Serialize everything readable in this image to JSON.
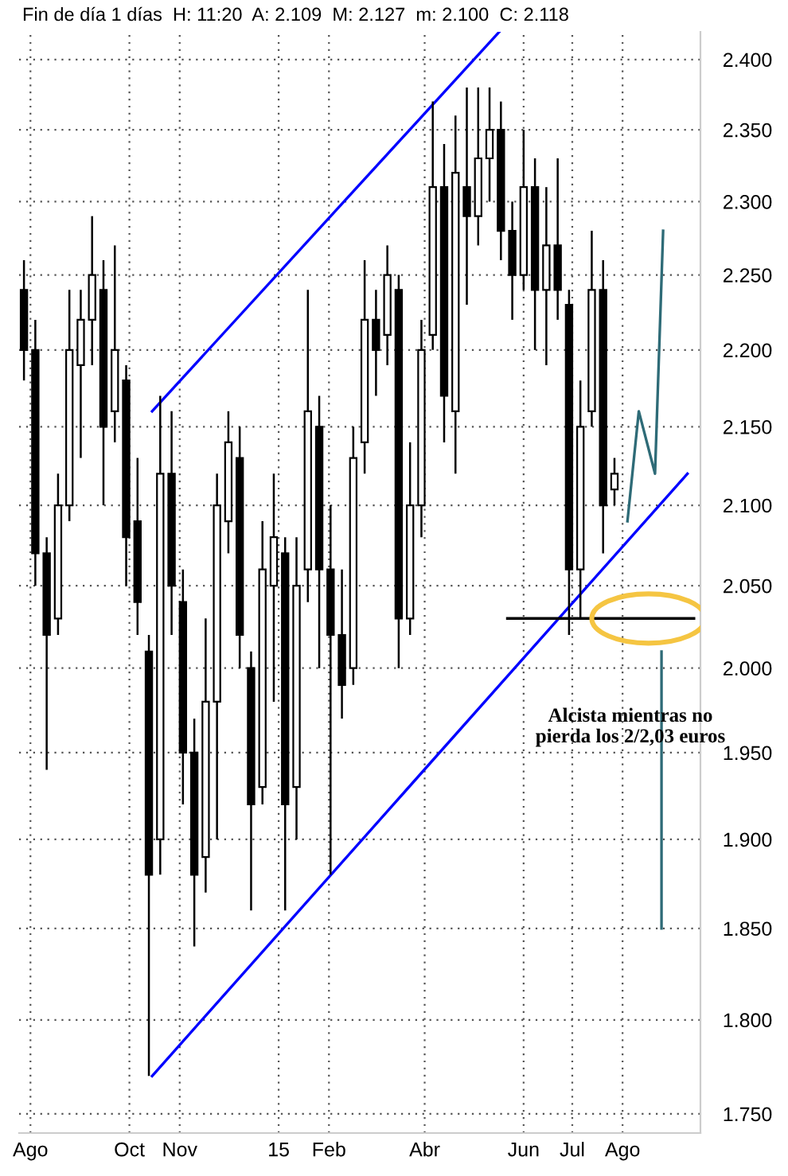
{
  "chart_data": {
    "type": "candlestick",
    "title": "Fin de día 1 días  H: 11:20  A: 2.109  M: 2.127  m: 2.100  C: 2.118",
    "x": [
      "2014-07-28",
      "2014-08-04",
      "2014-08-11",
      "2014-08-18",
      "2014-08-25",
      "2014-09-01",
      "2014-09-08",
      "2014-09-15",
      "2014-09-22",
      "2014-09-29",
      "2014-10-06",
      "2014-10-13",
      "2014-10-20",
      "2014-10-27",
      "2014-11-03",
      "2014-11-10",
      "2014-11-17",
      "2014-11-24",
      "2014-12-01",
      "2014-12-08",
      "2014-12-15",
      "2014-12-22",
      "2014-12-29",
      "2015-01-05",
      "2015-01-12",
      "2015-01-19",
      "2015-01-26",
      "2015-02-02",
      "2015-02-09",
      "2015-02-16",
      "2015-02-23",
      "2015-03-02",
      "2015-03-09",
      "2015-03-16",
      "2015-03-23",
      "2015-03-30",
      "2015-04-06",
      "2015-04-13",
      "2015-04-20",
      "2015-04-27",
      "2015-05-04",
      "2015-05-11",
      "2015-05-18",
      "2015-05-25",
      "2015-06-01",
      "2015-06-08",
      "2015-06-15",
      "2015-06-22",
      "2015-06-29",
      "2015-07-06",
      "2015-07-13",
      "2015-07-20",
      "2015-07-27"
    ],
    "ohlc": [
      [
        2.24,
        2.26,
        2.18,
        2.2
      ],
      [
        2.2,
        2.22,
        2.05,
        2.07
      ],
      [
        2.07,
        2.08,
        1.94,
        2.02
      ],
      [
        2.03,
        2.12,
        2.02,
        2.1
      ],
      [
        2.1,
        2.24,
        2.09,
        2.2
      ],
      [
        2.19,
        2.24,
        2.13,
        2.22
      ],
      [
        2.22,
        2.29,
        2.19,
        2.25
      ],
      [
        2.24,
        2.26,
        2.1,
        2.15
      ],
      [
        2.16,
        2.27,
        2.14,
        2.2
      ],
      [
        2.18,
        2.19,
        2.05,
        2.08
      ],
      [
        2.09,
        2.13,
        2.02,
        2.04
      ],
      [
        2.01,
        2.02,
        1.77,
        1.88
      ],
      [
        1.9,
        2.17,
        1.88,
        2.12
      ],
      [
        2.12,
        2.16,
        2.02,
        2.05
      ],
      [
        2.04,
        2.06,
        1.92,
        1.95
      ],
      [
        1.95,
        1.97,
        1.84,
        1.88
      ],
      [
        1.89,
        2.03,
        1.87,
        1.98
      ],
      [
        1.98,
        2.12,
        1.9,
        2.1
      ],
      [
        2.09,
        2.16,
        2.07,
        2.14
      ],
      [
        2.13,
        2.15,
        2.0,
        2.02
      ],
      [
        2.0,
        2.01,
        1.86,
        1.92
      ],
      [
        1.93,
        2.09,
        1.92,
        2.06
      ],
      [
        2.05,
        2.12,
        1.98,
        2.08
      ],
      [
        2.07,
        2.08,
        1.86,
        1.92
      ],
      [
        1.93,
        2.08,
        1.9,
        2.05
      ],
      [
        2.06,
        2.24,
        2.04,
        2.16
      ],
      [
        2.15,
        2.17,
        2.0,
        2.06
      ],
      [
        2.06,
        2.1,
        1.88,
        2.02
      ],
      [
        2.02,
        2.06,
        1.97,
        1.99
      ],
      [
        2.0,
        2.15,
        1.99,
        2.13
      ],
      [
        2.14,
        2.26,
        2.12,
        2.22
      ],
      [
        2.22,
        2.24,
        2.17,
        2.2
      ],
      [
        2.21,
        2.27,
        2.19,
        2.25
      ],
      [
        2.24,
        2.25,
        2.0,
        2.03
      ],
      [
        2.03,
        2.14,
        2.02,
        2.1
      ],
      [
        2.1,
        2.22,
        2.08,
        2.2
      ],
      [
        2.21,
        2.37,
        2.2,
        2.31
      ],
      [
        2.31,
        2.34,
        2.14,
        2.17
      ],
      [
        2.16,
        2.36,
        2.12,
        2.32
      ],
      [
        2.31,
        2.38,
        2.23,
        2.29
      ],
      [
        2.29,
        2.38,
        2.27,
        2.33
      ],
      [
        2.33,
        2.38,
        2.3,
        2.35
      ],
      [
        2.35,
        2.37,
        2.26,
        2.28
      ],
      [
        2.28,
        2.3,
        2.22,
        2.25
      ],
      [
        2.25,
        2.35,
        2.24,
        2.31
      ],
      [
        2.31,
        2.33,
        2.2,
        2.24
      ],
      [
        2.24,
        2.31,
        2.19,
        2.27
      ],
      [
        2.27,
        2.33,
        2.22,
        2.24
      ],
      [
        2.23,
        2.24,
        2.02,
        2.06
      ],
      [
        2.06,
        2.18,
        2.03,
        2.15
      ],
      [
        2.16,
        2.28,
        2.15,
        2.24
      ],
      [
        2.24,
        2.26,
        2.07,
        2.1
      ],
      [
        2.11,
        2.13,
        2.1,
        2.12
      ]
    ],
    "series": [
      {
        "type": "line",
        "color": "#0000ff",
        "x": [
          "2014-10-15",
          "2015-05-17"
        ],
        "values": [
          2.16,
          2.42
        ]
      },
      {
        "type": "line",
        "color": "#0000ff",
        "x": [
          "2014-10-15",
          "2015-09-10"
        ],
        "values": [
          1.77,
          2.12
        ]
      },
      {
        "type": "line",
        "color": "#000000",
        "x": [
          "2015-05-22",
          "2015-09-14"
        ],
        "values": [
          2.03,
          2.03
        ]
      },
      {
        "type": "line",
        "color": "#2e6b77",
        "x": [
          "2015-08-04",
          "2015-08-11",
          "2015-08-21",
          "2015-08-26"
        ],
        "values": [
          2.09,
          2.16,
          2.12,
          2.28
        ]
      },
      {
        "type": "line",
        "color": "#2e6b77",
        "x": [
          "2015-08-25",
          "2015-08-25"
        ],
        "values": [
          2.01,
          1.85
        ]
      }
    ],
    "annotations": [
      "Alcista mientras no\npierda los 2/2,03 euros"
    ],
    "log": true,
    "xlim": [
      "2014-07-25",
      "2015-09-18"
    ],
    "xticks": [
      {
        "value": "2014-08-01",
        "label": "Ago"
      },
      {
        "value": "2014-10-01",
        "label": "Oct"
      },
      {
        "value": "2014-11-01",
        "label": "Nov"
      },
      {
        "value": "2015-01-01",
        "label": "15"
      },
      {
        "value": "2015-02-01",
        "label": "Feb"
      },
      {
        "value": "2015-04-01",
        "label": "Abr"
      },
      {
        "value": "2015-06-01",
        "label": "Jun"
      },
      {
        "value": "2015-07-01",
        "label": "Jul"
      },
      {
        "value": "2015-08-01",
        "label": "Ago"
      }
    ],
    "ylim": [
      1.74,
      2.42
    ],
    "yticks": [
      {
        "value": 1.75,
        "label": "1.750"
      },
      {
        "value": 1.8,
        "label": "1.800"
      },
      {
        "value": 1.85,
        "label": "1.850"
      },
      {
        "value": 1.9,
        "label": "1.900"
      },
      {
        "value": 1.95,
        "label": "1.950"
      },
      {
        "value": 2.0,
        "label": "2.000"
      },
      {
        "value": 2.05,
        "label": "2.050"
      },
      {
        "value": 2.1,
        "label": "2.100"
      },
      {
        "value": 2.15,
        "label": "2.150"
      },
      {
        "value": 2.2,
        "label": "2.200"
      },
      {
        "value": 2.25,
        "label": "2.250"
      },
      {
        "value": 2.3,
        "label": "2.300"
      },
      {
        "value": 2.35,
        "label": "2.350"
      },
      {
        "value": 2.4,
        "label": "2.400"
      }
    ],
    "grid": true
  }
}
